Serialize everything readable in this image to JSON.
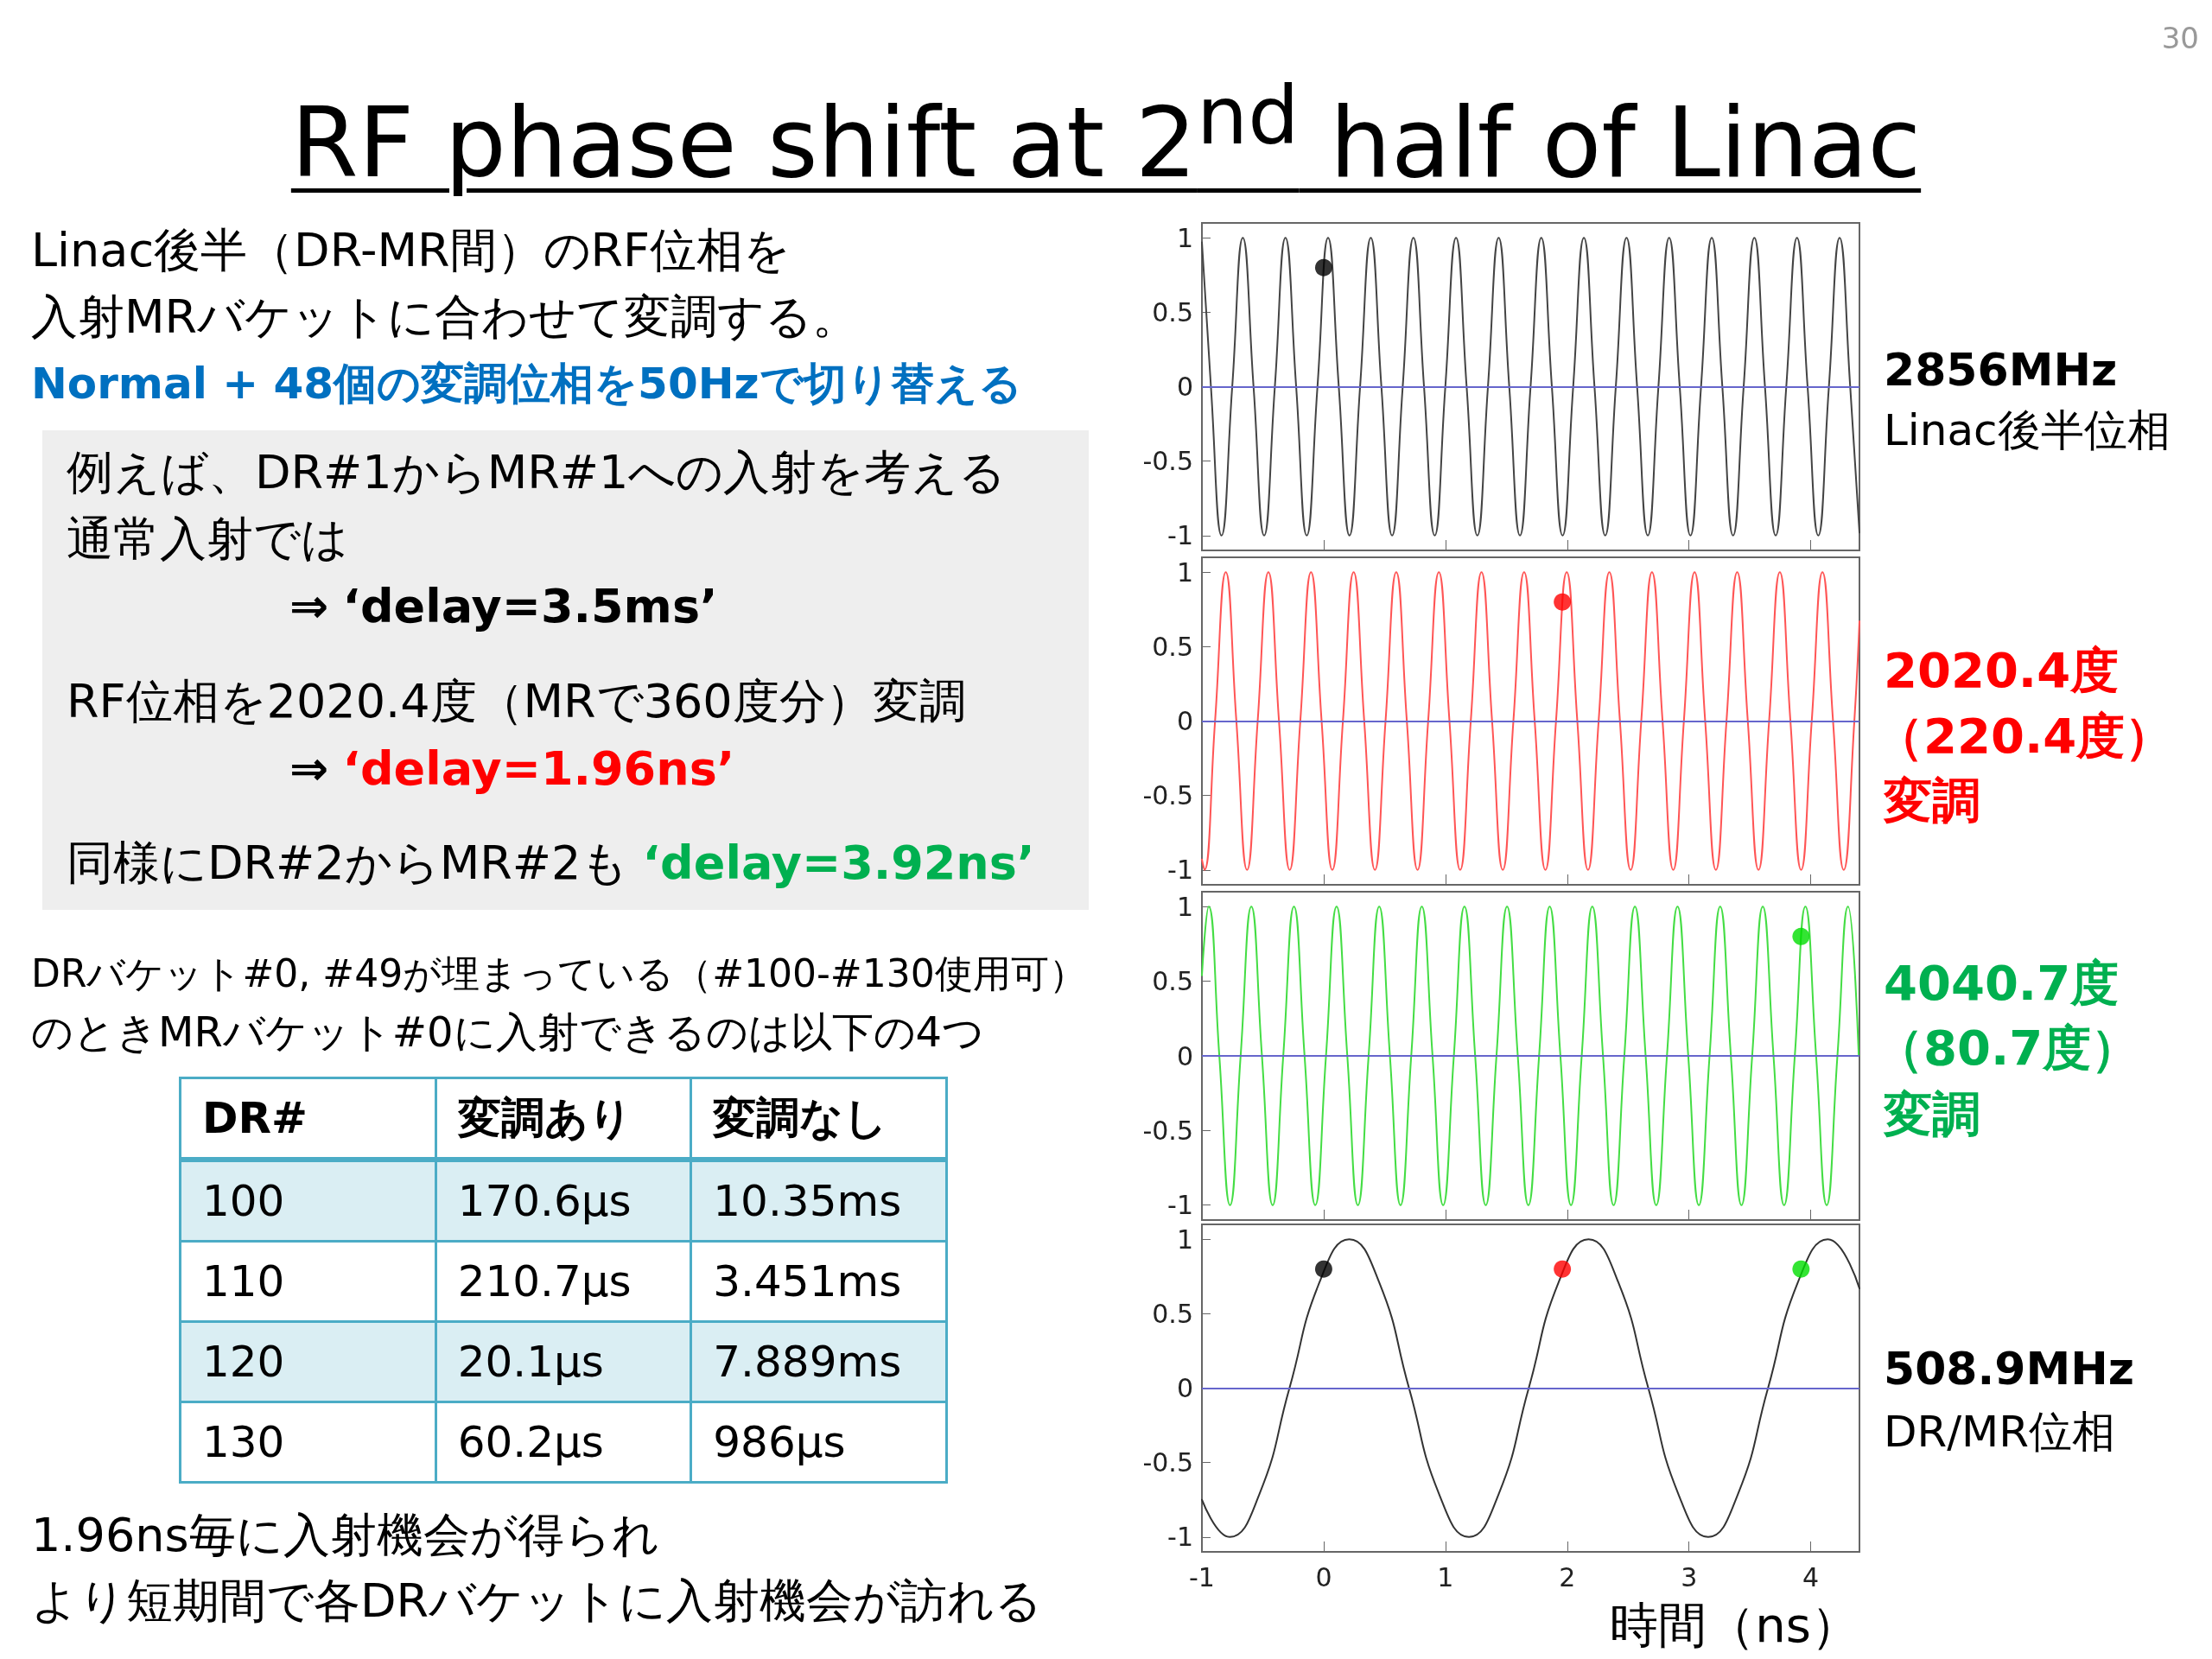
{
  "chart_data": [
    {
      "type": "line",
      "title": "RF phase shift at 2$^{nd}$ half of Linac",
      "annotations": [
        "30",
        "Linac後半（DR-MR間）のRF位相を",
        "入射MRバケットに合わせて変調する。",
        "Normal + 48個の変調位相を50Hzで切り替える",
        "例えば、DR#1からMR#1への入射を考える",
        "通常入射では",
        "⇒",
        "‘delay=3.5ms’",
        "RF位相を2020.4度（MRで360度分）変調",
        "⇒",
        "‘delay=1.96ns’",
        "同様にDR#2からMR#2も",
        "‘delay=3.92ns’",
        "DRバケット#0, #49が埋まっている（#100-#130使用可）",
        "のときMRバケット#0に入射できるのは以下の4つ",
        "DR#",
        "変調あり",
        "変調なし",
        "100",
        "170.6μs",
        "10.35ms",
        "110",
        "210.7μs",
        "3.451ms",
        "120",
        "20.1μs",
        "7.889ms",
        "130",
        "60.2μs",
        "986μs",
        "1.96ns毎に入射機会が得られ",
        "より短期間で各DRバケットに入射機会が訪れる",
        "2856MHz",
        "Linac後半位相"
      ],
      "series": [
        {
          "color": "#444444",
          "x": [
            -1,
            -0.926,
            -0.839,
            -0.751,
            -0.664,
            -0.576,
            -0.489,
            -0.401,
            -0.314,
            -0.226,
            -0.139,
            -0.051,
            0.036,
            0.124,
            0.212,
            0.299,
            0.387,
            0.474,
            0.562,
            0.649,
            0.737,
            0.824,
            0.912,
            0.999,
            1.087,
            1.174,
            1.262,
            1.349,
            1.437,
            1.524,
            1.612,
            1.699,
            1.787,
            1.874,
            1.962,
            2.049,
            2.137,
            2.224,
            2.312,
            2.399,
            2.487,
            2.574,
            2.662,
            2.749,
            2.837,
            2.924,
            3.012,
            3.099,
            3.187,
            3.274,
            3.362,
            3.449,
            3.537,
            3.624,
            3.712,
            3.799,
            3.887,
            3.974,
            4.062,
            4.149,
            4.237,
            4.324,
            4.4
          ],
          "values": [
            0.97,
            0,
            -1,
            0,
            1,
            0,
            -1,
            0,
            1,
            0,
            -1,
            0,
            1,
            0,
            -1,
            0,
            1,
            0,
            -1,
            0,
            1,
            0,
            -1,
            0,
            1,
            0,
            -1,
            0,
            1,
            0,
            -1,
            0,
            1,
            0,
            -1,
            0,
            1,
            0,
            -1,
            0,
            1,
            0,
            -1,
            0,
            1,
            0,
            -1,
            0,
            1,
            0,
            -1,
            0,
            1,
            0,
            -1,
            0,
            1,
            0,
            -1,
            0,
            1,
            0,
            -0.98
          ]
        },
        {
          "type": "scatter",
          "marker": "circle",
          "color": "#000000",
          "x": [
            0
          ],
          "values": [
            0.8
          ]
        }
      ],
      "ref_lines": [
        {
          "axis": "y",
          "value": 0,
          "color": "#6666cc"
        }
      ],
      "xlim": [
        -1,
        4.4
      ],
      "ylim": [
        -1.1,
        1.1
      ],
      "xticks": [
        -1,
        0,
        1,
        2,
        3,
        4
      ],
      "yticks": [
        -1,
        -0.5,
        0,
        0.5,
        1
      ],
      "tick_labels": "y"
    },
    {
      "type": "line",
      "annotations": [
        "2020.4度",
        "（220.4度）",
        "変調"
      ],
      "series": [
        {
          "color": "#ff5555",
          "x": [
            -1,
            -0.979,
            -0.892,
            -0.804,
            -0.717,
            -0.629,
            -0.542,
            -0.454,
            -0.367,
            -0.279,
            -0.192,
            -0.104,
            -0.017,
            0.071,
            0.158,
            0.246,
            0.333,
            0.421,
            0.508,
            0.596,
            0.683,
            0.771,
            0.858,
            0.946,
            1.033,
            1.121,
            1.208,
            1.296,
            1.383,
            1.471,
            1.558,
            1.646,
            1.733,
            1.821,
            1.908,
            1.996,
            2.083,
            2.171,
            2.258,
            2.346,
            2.433,
            2.521,
            2.608,
            2.696,
            2.783,
            2.871,
            2.958,
            3.046,
            3.133,
            3.221,
            3.308,
            3.396,
            3.483,
            3.571,
            3.658,
            3.746,
            3.833,
            3.921,
            4.008,
            4.096,
            4.183,
            4.271,
            4.358,
            4.4
          ],
          "values": [
            -0.93,
            -1,
            0,
            1,
            0,
            -1,
            0,
            1,
            0,
            -1,
            0,
            1,
            0,
            -1,
            0,
            1,
            0,
            -1,
            0,
            1,
            0,
            -1,
            0,
            1,
            0,
            -1,
            0,
            1,
            0,
            -1,
            0,
            1,
            0,
            -1,
            0,
            1,
            0,
            -1,
            0,
            1,
            0,
            -1,
            0,
            1,
            0,
            -1,
            0,
            1,
            0,
            -1,
            0,
            1,
            0,
            -1,
            0,
            1,
            0,
            -1,
            0,
            1,
            0,
            -1,
            0,
            0.67
          ]
        },
        {
          "type": "scatter",
          "marker": "circle",
          "color": "#ff0000",
          "x": [
            1.96
          ],
          "values": [
            0.8
          ]
        }
      ],
      "ref_lines": [
        {
          "axis": "y",
          "value": 0,
          "color": "#6666cc"
        }
      ],
      "xlim": [
        -1,
        4.4
      ],
      "ylim": [
        -1.1,
        1.1
      ],
      "xticks": [
        -1,
        0,
        1,
        2,
        3,
        4
      ],
      "yticks": [
        -1,
        -0.5,
        0,
        0.5,
        1
      ],
      "tick_labels": "y"
    },
    {
      "type": "line",
      "annotations": [
        "4040.7度",
        "（80.7度）",
        "変調"
      ],
      "series": [
        {
          "color": "#44dd44",
          "x": [
            -1,
            -0.944,
            -0.857,
            -0.769,
            -0.682,
            -0.594,
            -0.507,
            -0.419,
            -0.332,
            -0.244,
            -0.157,
            -0.069,
            0.019,
            0.106,
            0.194,
            0.281,
            0.369,
            0.456,
            0.544,
            0.631,
            0.719,
            0.806,
            0.894,
            0.981,
            1.069,
            1.156,
            1.244,
            1.331,
            1.419,
            1.506,
            1.594,
            1.681,
            1.769,
            1.856,
            1.944,
            2.031,
            2.119,
            2.206,
            2.294,
            2.381,
            2.469,
            2.556,
            2.644,
            2.731,
            2.819,
            2.906,
            2.994,
            3.081,
            3.169,
            3.256,
            3.344,
            3.431,
            3.519,
            3.606,
            3.694,
            3.781,
            3.869,
            3.956,
            4.044,
            4.131,
            4.219,
            4.306,
            4.394
          ],
          "values": [
            0.54,
            1,
            0,
            -1,
            0,
            1,
            0,
            -1,
            0,
            1,
            0,
            -1,
            0,
            1,
            0,
            -1,
            0,
            1,
            0,
            -1,
            0,
            1,
            0,
            -1,
            0,
            1,
            0,
            -1,
            0,
            1,
            0,
            -1,
            0,
            1,
            0,
            -1,
            0,
            1,
            0,
            -1,
            0,
            1,
            0,
            -1,
            0,
            1,
            0,
            -1,
            0,
            1,
            0,
            -1,
            0,
            1,
            0,
            -1,
            0,
            1,
            0,
            -1,
            0,
            1,
            0
          ]
        },
        {
          "type": "scatter",
          "marker": "circle",
          "color": "#00dd00",
          "x": [
            3.92
          ],
          "values": [
            0.8
          ]
        }
      ],
      "ref_lines": [
        {
          "axis": "y",
          "value": 0,
          "color": "#6666cc"
        }
      ],
      "xlim": [
        -1,
        4.4
      ],
      "ylim": [
        -1.1,
        1.1
      ],
      "xticks": [
        -1,
        0,
        1,
        2,
        3,
        4
      ],
      "yticks": [
        -1,
        -0.5,
        0,
        0.5,
        1
      ],
      "tick_labels": "y"
    },
    {
      "type": "line",
      "xlabel": "時間（ns）",
      "annotations": [
        "508.9MHz",
        "DR/MR位相"
      ],
      "series": [
        {
          "color": "#333333",
          "x": [
            -1,
            -0.772,
            -0.527,
            -0.281,
            -0.035,
            0.21,
            0.456,
            0.701,
            0.947,
            1.193,
            1.438,
            1.684,
            1.929,
            2.175,
            2.42,
            2.666,
            2.912,
            3.158,
            3.403,
            3.649,
            3.894,
            4.14,
            4.4
          ],
          "values": [
            -0.75,
            -1,
            -0.71,
            0,
            0.71,
            1,
            0.71,
            0,
            -0.71,
            -1,
            -0.71,
            0,
            0.71,
            1,
            0.71,
            0,
            -0.71,
            -1,
            -0.71,
            0,
            0.71,
            1,
            0.67
          ]
        },
        {
          "type": "scatter",
          "marker": "circle",
          "colors": [
            "#000000",
            "#ff0000",
            "#00dd00"
          ],
          "x": [
            0,
            1.96,
            3.92
          ],
          "values": [
            0.8,
            0.8,
            0.8
          ]
        }
      ],
      "ref_lines": [
        {
          "axis": "y",
          "value": 0,
          "color": "#6666cc"
        }
      ],
      "xlim": [
        -1,
        4.4
      ],
      "ylim": [
        -1.1,
        1.1
      ],
      "xticks": [
        -1,
        0,
        1,
        2,
        3,
        4
      ],
      "yticks": [
        -1,
        -0.5,
        0,
        0.5,
        1
      ]
    }
  ]
}
